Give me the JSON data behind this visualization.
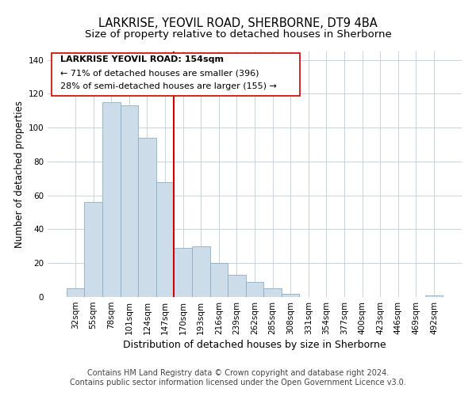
{
  "title": "LARKRISE, YEOVIL ROAD, SHERBORNE, DT9 4BA",
  "subtitle": "Size of property relative to detached houses in Sherborne",
  "xlabel": "Distribution of detached houses by size in Sherborne",
  "ylabel": "Number of detached properties",
  "bar_labels": [
    "32sqm",
    "55sqm",
    "78sqm",
    "101sqm",
    "124sqm",
    "147sqm",
    "170sqm",
    "193sqm",
    "216sqm",
    "239sqm",
    "262sqm",
    "285sqm",
    "308sqm",
    "331sqm",
    "354sqm",
    "377sqm",
    "400sqm",
    "423sqm",
    "446sqm",
    "469sqm",
    "492sqm"
  ],
  "bar_values": [
    5,
    56,
    115,
    113,
    94,
    68,
    29,
    30,
    20,
    13,
    9,
    5,
    2,
    0,
    0,
    0,
    0,
    0,
    0,
    0,
    1
  ],
  "bar_color": "#ccdce8",
  "bar_edge_color": "#8aafc8",
  "vline_color": "#cc0000",
  "annotation_text_line1": "LARKRISE YEOVIL ROAD: 154sqm",
  "annotation_text_line2": "← 71% of detached houses are smaller (396)",
  "annotation_text_line3": "28% of semi-detached houses are larger (155) →",
  "ylim": [
    0,
    145
  ],
  "yticks": [
    0,
    20,
    40,
    60,
    80,
    100,
    120,
    140
  ],
  "footer_line1": "Contains HM Land Registry data © Crown copyright and database right 2024.",
  "footer_line2": "Contains public sector information licensed under the Open Government Licence v3.0.",
  "bg_color": "#ffffff",
  "grid_color": "#c8d4e0",
  "title_fontsize": 10.5,
  "subtitle_fontsize": 9.5,
  "xlabel_fontsize": 9,
  "ylabel_fontsize": 8.5,
  "tick_fontsize": 7.5,
  "annotation_fontsize": 8,
  "footer_fontsize": 7
}
